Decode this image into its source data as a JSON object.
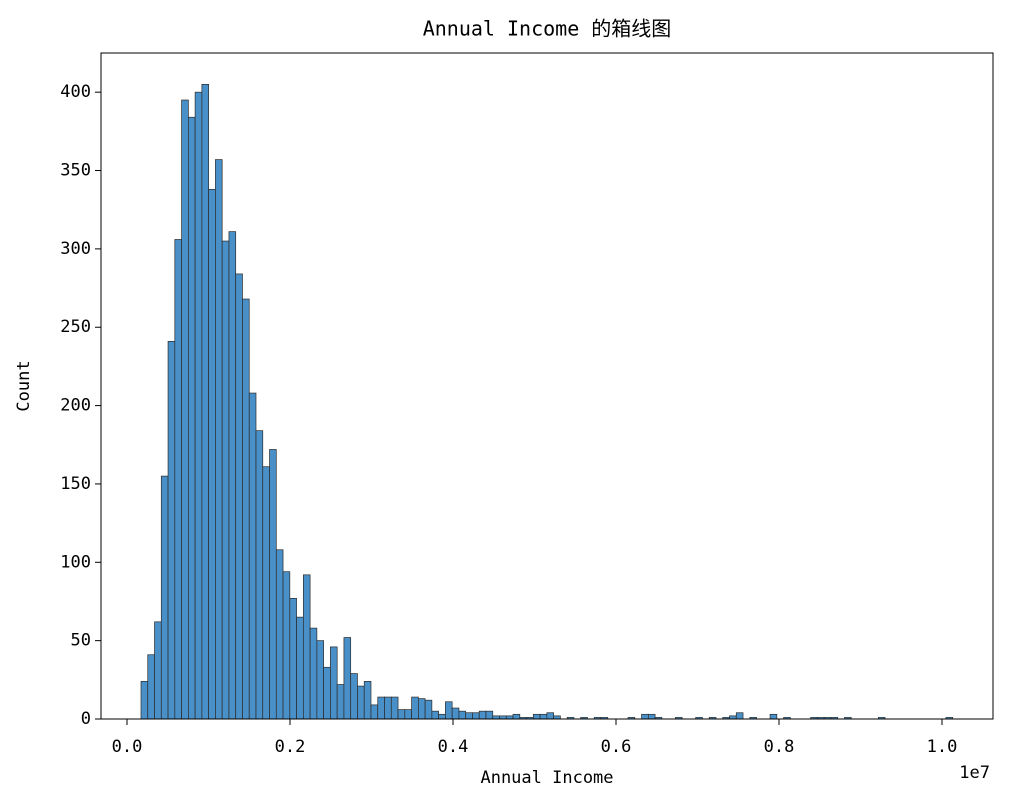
{
  "chart_data": {
    "type": "histogram",
    "title": "Annual Income 的箱线图",
    "x_label": "Annual Income",
    "y_label": "Count",
    "x_offset_label": "1e7",
    "color": "#4a90c8",
    "edge_color": "#2b2b2b",
    "bins": [
      171800,
      254800,
      337800,
      420800,
      503800,
      586800,
      669800,
      752800,
      835800,
      918800,
      1001800,
      1084800,
      1167800,
      1250800,
      1333800,
      1416800,
      1499800,
      1582800,
      1665800,
      1748800,
      1831800,
      1914800,
      1997800,
      2080800,
      2163800,
      2246800,
      2329800,
      2412800,
      2495800,
      2578800,
      2661800,
      2744800,
      2827800,
      2910800,
      2993800,
      3076800,
      3159800,
      3242800,
      3325800,
      3408800,
      3491800,
      3574800,
      3657800,
      3740800,
      3823800,
      3906800,
      3989800,
      4072800,
      4155800,
      4238800,
      4321800,
      4404800,
      4487800,
      4570800,
      4653800,
      4736800,
      4819800,
      4902800,
      4985800,
      5068800,
      5151800,
      5234800,
      5317800,
      5400800,
      5483800,
      5566800,
      5649800,
      5732800,
      5815800,
      5898800,
      5981800,
      6064800,
      6147800,
      6230800,
      6313800,
      6396800,
      6479800,
      6562800,
      6645800,
      6728800,
      6811800,
      6894800,
      6977800,
      7060800,
      7143800,
      7226800,
      7309800,
      7392800,
      7475800,
      7558800,
      7641800,
      7724800,
      7807800,
      7890800,
      7973800,
      8056800,
      8139800,
      8222800,
      8305800,
      8388800,
      8471800,
      8554800,
      8637800,
      8720800,
      8803800,
      8886800,
      8969800,
      9052800,
      9135800,
      9218800,
      9301800,
      9384800,
      9467800,
      9550800,
      9633800,
      9716800,
      9799800,
      9882800,
      9965800,
      10048800,
      10131800
    ],
    "values": [
      24,
      41,
      62,
      155,
      241,
      306,
      395,
      384,
      400,
      405,
      338,
      357,
      305,
      311,
      284,
      268,
      208,
      184,
      161,
      172,
      108,
      94,
      77,
      65,
      92,
      58,
      50,
      33,
      46,
      22,
      52,
      29,
      21,
      24,
      9,
      14,
      14,
      14,
      6,
      6,
      14,
      13,
      12,
      5,
      3,
      11,
      7,
      5,
      4,
      4,
      5,
      5,
      2,
      2,
      2,
      3,
      1,
      1,
      3,
      3,
      4,
      2,
      0,
      1,
      0,
      1,
      0,
      1,
      1,
      0,
      0,
      0,
      1,
      0,
      3,
      3,
      1,
      0,
      0,
      1,
      0,
      0,
      1,
      0,
      1,
      0,
      1,
      2,
      4,
      0,
      1,
      0,
      0,
      3,
      0,
      1,
      0,
      0,
      0,
      1,
      1,
      1,
      1,
      0,
      1,
      0,
      0,
      0,
      0,
      1,
      0,
      0,
      0,
      0,
      0,
      0,
      0,
      0,
      0,
      1
    ],
    "xlim": [
      -319000,
      10626000
    ],
    "ylim": [
      0,
      425
    ],
    "xticks": [
      {
        "value": 0,
        "label": "0.0"
      },
      {
        "value": 2000000,
        "label": "0.2"
      },
      {
        "value": 4000000,
        "label": "0.4"
      },
      {
        "value": 6000000,
        "label": "0.6"
      },
      {
        "value": 8000000,
        "label": "0.8"
      },
      {
        "value": 10000000,
        "label": "1.0"
      }
    ],
    "yticks": [
      0,
      50,
      100,
      150,
      200,
      250,
      300,
      350,
      400
    ]
  }
}
